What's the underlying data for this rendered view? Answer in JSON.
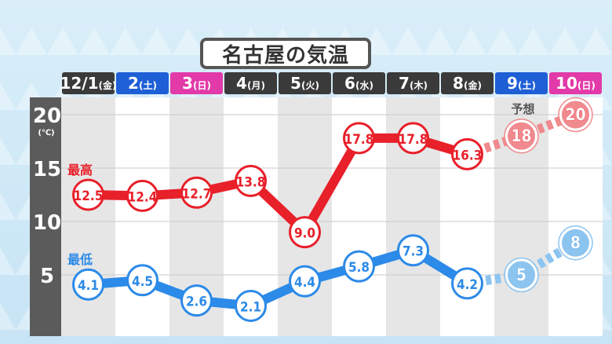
{
  "title": "名古屋の気温",
  "chart_data": {
    "type": "line",
    "categories": [
      {
        "num": "12/1",
        "dow": "金",
        "color": "#3a3a3a"
      },
      {
        "num": "2",
        "dow": "土",
        "color": "#1e5fd6"
      },
      {
        "num": "3",
        "dow": "日",
        "color": "#e23aa8"
      },
      {
        "num": "4",
        "dow": "月",
        "color": "#3a3a3a"
      },
      {
        "num": "5",
        "dow": "火",
        "color": "#3a3a3a"
      },
      {
        "num": "6",
        "dow": "水",
        "color": "#3a3a3a"
      },
      {
        "num": "7",
        "dow": "木",
        "color": "#3a3a3a"
      },
      {
        "num": "8",
        "dow": "金",
        "color": "#3a3a3a"
      },
      {
        "num": "9",
        "dow": "土",
        "color": "#1e5fd6"
      },
      {
        "num": "10",
        "dow": "日",
        "color": "#e23aa8"
      }
    ],
    "series": [
      {
        "name": "最高",
        "color": "#e8202a",
        "forecast_color": "#f08a8e",
        "values": [
          12.5,
          12.4,
          12.7,
          13.8,
          9.0,
          17.8,
          17.8,
          16.3,
          18,
          20
        ],
        "labels": [
          "12.5",
          "12.4",
          "12.7",
          "13.8",
          "9.0",
          "17.8",
          "17.8",
          "16.3",
          "18",
          "20"
        ]
      },
      {
        "name": "最低",
        "color": "#2c8ae8",
        "forecast_color": "#8cc4f0",
        "values": [
          4.1,
          4.5,
          2.6,
          2.1,
          4.4,
          5.8,
          7.3,
          4.2,
          5,
          8
        ],
        "labels": [
          "4.1",
          "4.5",
          "2.6",
          "2.1",
          "4.4",
          "5.8",
          "7.3",
          "4.2",
          "5",
          "8"
        ]
      }
    ],
    "forecast_start_index": 8,
    "forecast_label": "予想",
    "yticks": [
      5,
      10,
      15,
      20
    ],
    "yunit": "(℃)",
    "ylim": [
      0,
      22.5
    ]
  }
}
